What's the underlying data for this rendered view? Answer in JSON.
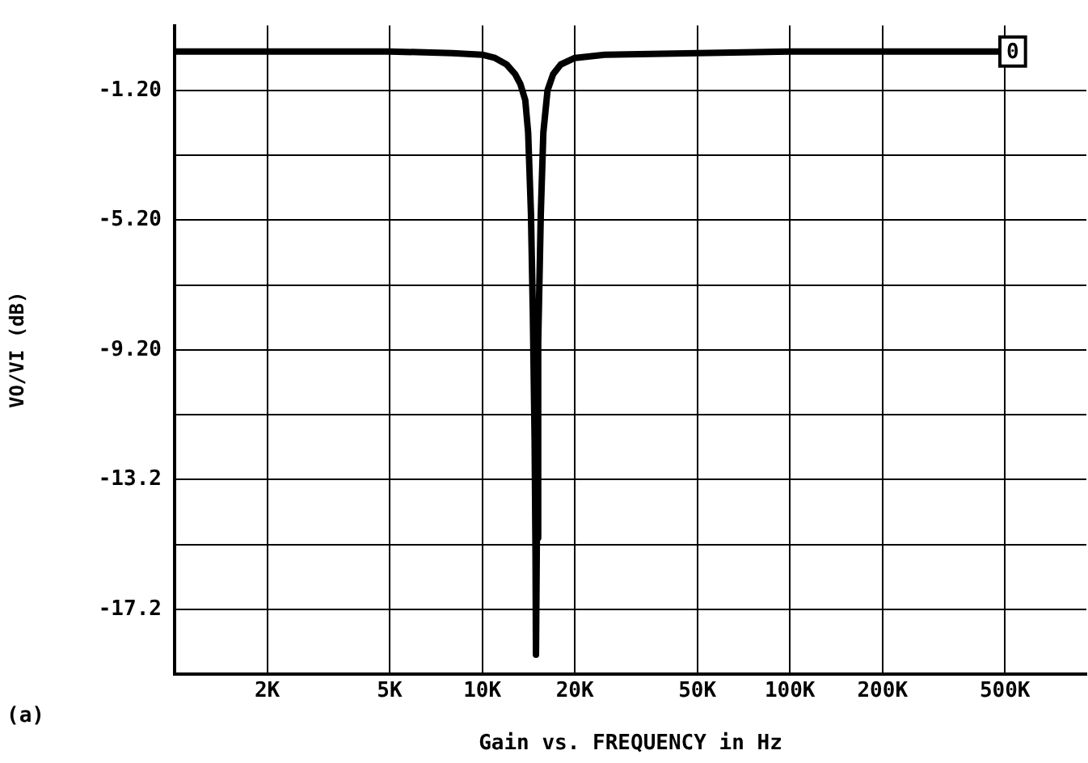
{
  "chart_data": {
    "type": "line",
    "xlabel": "Gain vs. FREQUENCY in Hz",
    "ylabel": "VO/VI (dB)",
    "log": "x",
    "xlim": [
      1000,
      920000
    ],
    "ylim": [
      -19.2,
      0.8
    ],
    "xticks": [
      {
        "value": 2000,
        "label": "2K"
      },
      {
        "value": 5000,
        "label": "5K"
      },
      {
        "value": 10000,
        "label": "10K"
      },
      {
        "value": 20000,
        "label": "20K"
      },
      {
        "value": 50000,
        "label": "50K"
      },
      {
        "value": 100000,
        "label": "100K"
      },
      {
        "value": 200000,
        "label": "200K"
      },
      {
        "value": 500000,
        "label": "500K"
      }
    ],
    "yticks": [
      {
        "value": -1.2,
        "label": "-1.20"
      },
      {
        "value": -3.2,
        "label": null
      },
      {
        "value": -5.2,
        "label": "-5.20"
      },
      {
        "value": -7.2,
        "label": null
      },
      {
        "value": -9.2,
        "label": "-9.20"
      },
      {
        "value": -11.2,
        "label": null
      },
      -13.2,
      {
        "value": -15.2,
        "label": null
      },
      -17.2
    ],
    "grid": true,
    "legend": false,
    "marker": "none",
    "line_style": "solid",
    "series": [
      {
        "name": "0",
        "color": "#000000",
        "x": [
          1000,
          2000,
          5000,
          8000,
          10000,
          11000,
          12000,
          12800,
          13300,
          13800,
          14100,
          14400,
          14600,
          14800,
          14900,
          14950,
          15050,
          15200,
          15500,
          15800,
          16300,
          17000,
          18000,
          20000,
          25000,
          50000,
          100000,
          530000
        ],
        "values": [
          0,
          0,
          0,
          -0.05,
          -0.1,
          -0.2,
          -0.4,
          -0.7,
          -1,
          -1.5,
          -2.5,
          -5,
          -8,
          -12,
          -15.5,
          -18.6,
          -15,
          -9,
          -5,
          -2.5,
          -1.2,
          -0.7,
          -0.4,
          -0.2,
          -0.1,
          -0.05,
          0,
          0
        ]
      }
    ],
    "annotations": [
      "(a)"
    ]
  }
}
